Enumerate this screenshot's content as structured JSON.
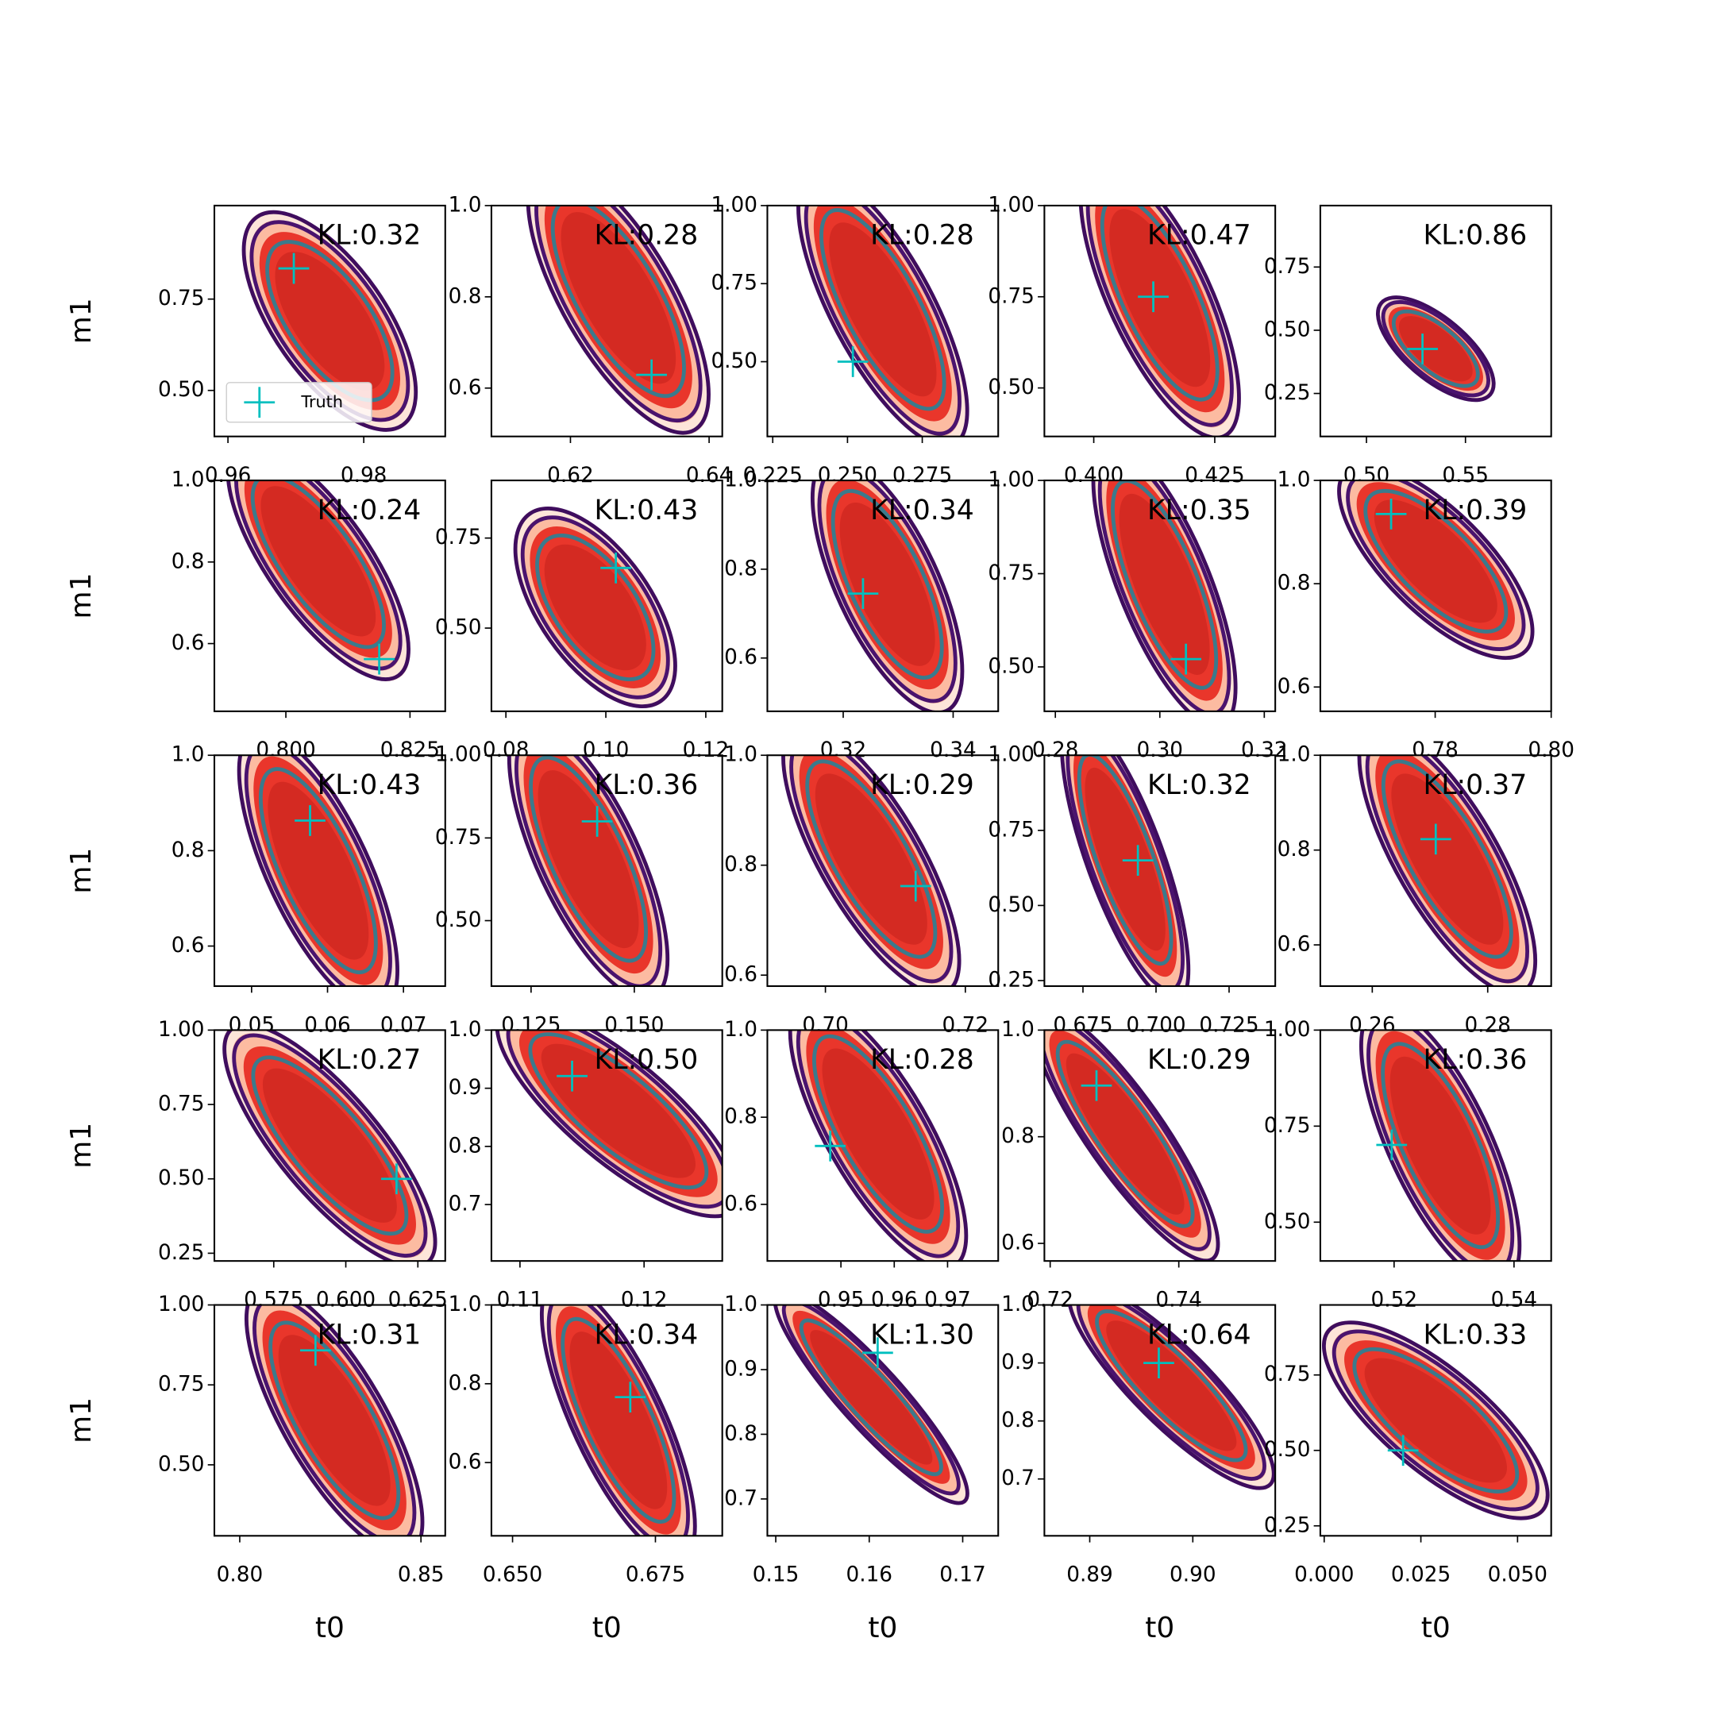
{
  "chart_data": [
    {
      "type": "contour",
      "annotation": "KL:0.32",
      "ylabel": "m1",
      "xlim": [
        0.958,
        0.992
      ],
      "xticks": [
        0.96,
        0.98
      ],
      "ylim": [
        0.374,
        1.006
      ],
      "yticks": [
        {
          "value": 0.5,
          "label": "0.50"
        },
        0.75
      ],
      "legend": "lower left",
      "points": {
        "name": "Truth",
        "color": "#00bfbf",
        "x": [
          0.9697
        ],
        "values": [
          0.834
        ]
      }
    },
    {
      "type": "contour",
      "annotation": "KL:0.28",
      "xlim": [
        0.6086,
        0.6419
      ],
      "xticks": [
        0.62,
        0.64
      ],
      "ylim": [
        0.494,
        1.0
      ],
      "yticks": [
        0.6,
        0.8,
        {
          "value": 1,
          "label": "1.0"
        }
      ],
      "points": {
        "color": "#00bfbf",
        "x": [
          0.6317
        ],
        "values": [
          0.629
        ]
      }
    },
    {
      "type": "contour",
      "annotation": "KL:0.28",
      "xlim": [
        0.2232,
        0.3004
      ],
      "xticks": [
        0.225,
        {
          "value": 0.25,
          "label": "0.250"
        },
        0.275
      ],
      "ylim": [
        0.2606,
        1.0
      ],
      "yticks": [
        {
          "value": 0.5,
          "label": "0.50"
        },
        0.75,
        {
          "value": 1,
          "label": "1.00"
        }
      ],
      "points": {
        "color": "#00bfbf",
        "x": [
          0.2518
        ],
        "values": [
          0.5
        ]
      }
    },
    {
      "type": "contour",
      "annotation": "KL:0.47",
      "xlim": [
        0.3898,
        0.4375
      ],
      "xticks": [
        {
          "value": 0.4,
          "label": "0.400"
        },
        0.425
      ],
      "ylim": [
        0.367,
        1.0
      ],
      "yticks": [
        {
          "value": 0.5,
          "label": "0.50"
        },
        0.75,
        {
          "value": 1,
          "label": "1.00"
        }
      ],
      "points": {
        "color": "#00bfbf",
        "x": [
          0.4123
        ],
        "values": [
          0.75
        ]
      }
    },
    {
      "type": "contour",
      "annotation": "KL:0.86",
      "xlim": [
        0.4767,
        0.5933
      ],
      "xticks": [
        {
          "value": 0.5,
          "label": "0.50"
        },
        0.55
      ],
      "ylim": [
        0.08,
        0.993
      ],
      "yticks": [
        0.25,
        {
          "value": 0.5,
          "label": "0.50"
        },
        0.75
      ],
      "points": {
        "color": "#00bfbf",
        "x": [
          0.5283
        ],
        "values": [
          0.426
        ]
      }
    },
    {
      "type": "contour",
      "annotation": "KL:0.24",
      "ylabel": "m1",
      "xlim": [
        0.7856,
        0.8321
      ],
      "xticks": [
        {
          "value": 0.8,
          "label": "0.800"
        },
        0.825
      ],
      "ylim": [
        0.434,
        1.0
      ],
      "yticks": [
        0.6,
        0.8,
        {
          "value": 1,
          "label": "1.0"
        }
      ],
      "points": {
        "color": "#00bfbf",
        "x": [
          0.8188
        ],
        "values": [
          0.562
        ]
      }
    },
    {
      "type": "contour",
      "annotation": "KL:0.43",
      "xlim": [
        0.0771,
        0.1233
      ],
      "xticks": [
        0.08,
        {
          "value": 0.1,
          "label": "0.10"
        },
        0.12
      ],
      "ylim": [
        0.269,
        0.91
      ],
      "yticks": [
        {
          "value": 0.5,
          "label": "0.50"
        },
        0.75
      ],
      "points": {
        "color": "#00bfbf",
        "x": [
          0.102
        ],
        "values": [
          0.667
        ]
      }
    },
    {
      "type": "contour",
      "annotation": "KL:0.34",
      "xlim": [
        0.3062,
        0.3482
      ],
      "xticks": [
        0.32,
        0.34
      ],
      "ylim": [
        0.48,
        1.0
      ],
      "yticks": [
        0.6,
        0.8,
        {
          "value": 1,
          "label": "1.0"
        }
      ],
      "points": {
        "color": "#00bfbf",
        "x": [
          0.3236
        ],
        "values": [
          0.745
        ]
      }
    },
    {
      "type": "contour",
      "annotation": "KL:0.35",
      "xlim": [
        0.2779,
        0.3221
      ],
      "xticks": [
        0.28,
        {
          "value": 0.3,
          "label": "0.30"
        },
        0.32
      ],
      "ylim": [
        0.381,
        1.0
      ],
      "yticks": [
        {
          "value": 0.5,
          "label": "0.50"
        },
        0.75,
        {
          "value": 1,
          "label": "1.00"
        }
      ],
      "points": {
        "color": "#00bfbf",
        "x": [
          0.305
        ],
        "values": [
          0.521
        ]
      }
    },
    {
      "type": "contour",
      "annotation": "KL:0.39",
      "xlim": [
        0.7602,
        0.8
      ],
      "xticks": [
        0.78,
        {
          "value": 0.8,
          "label": "0.80"
        }
      ],
      "ylim": [
        0.553,
        1.0
      ],
      "yticks": [
        0.6,
        0.8,
        {
          "value": 1,
          "label": "1.0"
        }
      ],
      "points": {
        "color": "#00bfbf",
        "x": [
          0.7724
        ],
        "values": [
          0.935
        ]
      }
    },
    {
      "type": "contour",
      "annotation": "KL:0.43",
      "ylabel": "m1",
      "xlim": [
        0.0451,
        0.0755
      ],
      "xticks": [
        0.05,
        0.06,
        0.07
      ],
      "ylim": [
        0.516,
        1.0
      ],
      "yticks": [
        0.6,
        0.8,
        {
          "value": 1,
          "label": "1.0"
        }
      ],
      "points": {
        "color": "#00bfbf",
        "x": [
          0.0577
        ],
        "values": [
          0.863
        ]
      }
    },
    {
      "type": "contour",
      "annotation": "KL:0.36",
      "xlim": [
        0.1154,
        0.1713
      ],
      "xticks": [
        0.125,
        {
          "value": 0.15,
          "label": "0.150"
        }
      ],
      "ylim": [
        0.302,
        1.0
      ],
      "yticks": [
        {
          "value": 0.5,
          "label": "0.50"
        },
        0.75,
        {
          "value": 1,
          "label": "1.00"
        }
      ],
      "points": {
        "color": "#00bfbf",
        "x": [
          0.141
        ],
        "values": [
          0.8
        ]
      }
    },
    {
      "type": "contour",
      "annotation": "KL:0.29",
      "xlim": [
        0.6917,
        0.7247
      ],
      "xticks": [
        {
          "value": 0.7,
          "label": "0.70"
        },
        0.72
      ],
      "ylim": [
        0.58,
        1.0
      ],
      "yticks": [
        0.6,
        0.8,
        {
          "value": 1,
          "label": "1.0"
        }
      ],
      "points": {
        "color": "#00bfbf",
        "x": [
          0.7129
        ],
        "values": [
          0.762
        ]
      }
    },
    {
      "type": "contour",
      "annotation": "KL:0.32",
      "xlim": [
        0.6618,
        0.7408
      ],
      "xticks": [
        0.675,
        {
          "value": 0.7,
          "label": "0.700"
        },
        0.725
      ],
      "ylim": [
        0.2315,
        1.0
      ],
      "yticks": [
        0.25,
        {
          "value": 0.5,
          "label": "0.50"
        },
        0.75,
        {
          "value": 1,
          "label": "1.00"
        }
      ],
      "points": {
        "color": "#00bfbf",
        "x": [
          0.6938
        ],
        "values": [
          0.65
        ]
      }
    },
    {
      "type": "contour",
      "annotation": "KL:0.37",
      "xlim": [
        0.251,
        0.291
      ],
      "xticks": [
        0.26,
        0.28
      ],
      "ylim": [
        0.513,
        1.0
      ],
      "yticks": [
        0.6,
        0.8,
        {
          "value": 1,
          "label": "1.0"
        }
      ],
      "points": {
        "color": "#00bfbf",
        "x": [
          0.271
        ],
        "values": [
          0.823
        ]
      }
    },
    {
      "type": "contour",
      "annotation": "KL:0.27",
      "ylabel": "m1",
      "xlim": [
        0.5544,
        0.6345
      ],
      "xticks": [
        0.575,
        {
          "value": 0.6,
          "label": "0.600"
        },
        0.625
      ],
      "ylim": [
        0.224,
        1.0
      ],
      "yticks": [
        0.25,
        {
          "value": 0.5,
          "label": "0.50"
        },
        0.75,
        {
          "value": 1,
          "label": "1.00"
        }
      ],
      "points": {
        "color": "#00bfbf",
        "x": [
          0.6176
        ],
        "values": [
          0.5
        ]
      }
    },
    {
      "type": "contour",
      "annotation": "KL:0.50",
      "xlim": [
        0.1077,
        0.1263
      ],
      "xticks": [
        0.11,
        0.12
      ],
      "ylim": [
        0.603,
        1.0
      ],
      "yticks": [
        0.7,
        0.8,
        0.9,
        {
          "value": 1,
          "label": "1.0"
        }
      ],
      "points": {
        "color": "#00bfbf",
        "x": [
          0.1142
        ],
        "values": [
          0.921
        ]
      }
    },
    {
      "type": "contour",
      "annotation": "KL:0.28",
      "xlim": [
        0.9362,
        0.9795
      ],
      "xticks": [
        0.95,
        0.96,
        0.97
      ],
      "ylim": [
        0.47,
        1.0
      ],
      "yticks": [
        0.6,
        0.8,
        {
          "value": 1,
          "label": "1.0"
        }
      ],
      "points": {
        "color": "#00bfbf",
        "x": [
          0.948
        ],
        "values": [
          0.734
        ]
      }
    },
    {
      "type": "contour",
      "annotation": "KL:0.29",
      "xlim": [
        0.7191,
        0.755
      ],
      "xticks": [
        0.72,
        0.74
      ],
      "ylim": [
        0.567,
        1.0
      ],
      "yticks": [
        0.6,
        0.8,
        {
          "value": 1,
          "label": "1.0"
        }
      ],
      "points": {
        "color": "#00bfbf",
        "x": [
          0.7272
        ],
        "values": [
          0.896
        ]
      }
    },
    {
      "type": "contour",
      "annotation": "KL:0.36",
      "xlim": [
        0.5077,
        0.5462
      ],
      "xticks": [
        0.52,
        0.54
      ],
      "ylim": [
        0.399,
        1.0
      ],
      "yticks": [
        {
          "value": 0.5,
          "label": "0.50"
        },
        0.75,
        {
          "value": 1,
          "label": "1.00"
        }
      ],
      "points": {
        "color": "#00bfbf",
        "x": [
          0.5196
        ],
        "values": [
          0.701
        ]
      }
    },
    {
      "type": "contour",
      "annotation": "KL:0.31",
      "ylabel": "m1",
      "xlabel": "t0",
      "xlim": [
        0.793,
        0.8567
      ],
      "xticks": [
        {
          "value": 0.8,
          "label": "0.80"
        },
        0.85
      ],
      "ylim": [
        0.278,
        1.0
      ],
      "yticks": [
        {
          "value": 0.5,
          "label": "0.50"
        },
        0.75,
        {
          "value": 1,
          "label": "1.00"
        }
      ],
      "points": {
        "color": "#00bfbf",
        "x": [
          0.8209
        ],
        "values": [
          0.858
        ]
      }
    },
    {
      "type": "contour",
      "annotation": "KL:0.34",
      "xlabel": "t0",
      "xlim": [
        0.6463,
        0.6867
      ],
      "xticks": [
        {
          "value": 0.65,
          "label": "0.650"
        },
        0.675
      ],
      "ylim": [
        0.414,
        1.0
      ],
      "yticks": [
        0.6,
        0.8,
        {
          "value": 1,
          "label": "1.0"
        }
      ],
      "points": {
        "color": "#00bfbf",
        "x": [
          0.6706
        ],
        "values": [
          0.766
        ]
      }
    },
    {
      "type": "contour",
      "annotation": "KL:1.30",
      "xlabel": "t0",
      "xlim": [
        0.1491,
        0.1738
      ],
      "xticks": [
        0.15,
        0.16,
        0.17
      ],
      "ylim": [
        0.643,
        1.0
      ],
      "yticks": [
        0.7,
        0.8,
        0.9,
        {
          "value": 1,
          "label": "1.0"
        }
      ],
      "points": {
        "color": "#00bfbf",
        "x": [
          0.1609
        ],
        "values": [
          0.926
        ]
      }
    },
    {
      "type": "contour",
      "annotation": "KL:0.64",
      "xlabel": "t0",
      "xlim": [
        0.8856,
        0.908
      ],
      "xticks": [
        0.89,
        {
          "value": 0.9,
          "label": "0.90"
        }
      ],
      "ylim": [
        0.602,
        1.0
      ],
      "yticks": [
        0.7,
        0.8,
        0.9,
        {
          "value": 1,
          "label": "1.0"
        }
      ],
      "points": {
        "color": "#00bfbf",
        "x": [
          0.8967
        ],
        "values": [
          0.9
        ]
      }
    },
    {
      "type": "contour",
      "annotation": "KL:0.33",
      "xlabel": "t0",
      "xlim": [
        -0.001,
        0.0587
      ],
      "xticks": [
        {
          "value": 0,
          "label": "0.000"
        },
        0.025,
        {
          "value": 0.05,
          "label": "0.050"
        }
      ],
      "ylim": [
        0.217,
        0.982
      ],
      "yticks": [
        0.25,
        {
          "value": 0.5,
          "label": "0.50"
        },
        0.75
      ],
      "points": {
        "color": "#00bfbf",
        "x": [
          0.0204
        ],
        "values": [
          0.5
        ]
      }
    }
  ]
}
